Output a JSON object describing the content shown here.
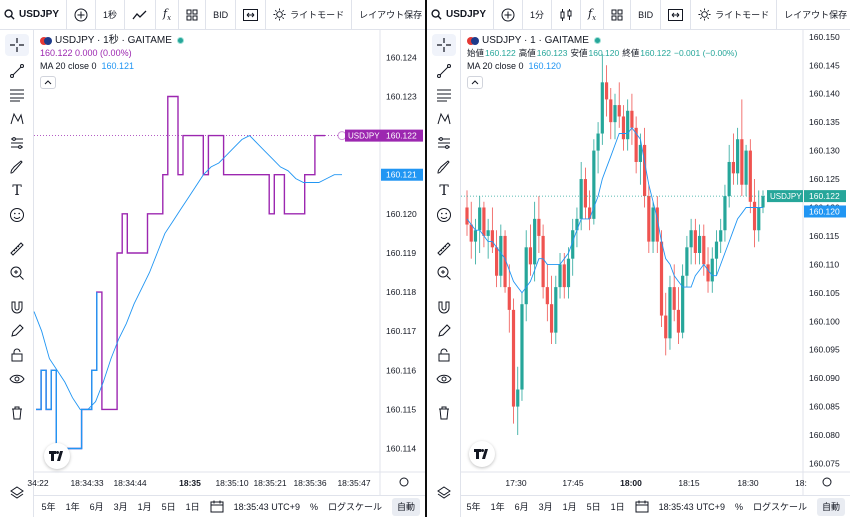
{
  "left": {
    "toolbar": {
      "symbol": "USDJPY",
      "interval": "1秒",
      "indicators_label": "BID",
      "theme_label": "ライトモード",
      "layout_label": "レイアウト保存"
    },
    "legend": {
      "title": "USDJPY · 1秒 · GAITAME",
      "values": "160.122  0.000 (0.00%)",
      "ma_label": "MA 20 close 0",
      "ma_value": "160.121"
    },
    "bottom": {
      "ranges": [
        "5年",
        "1年",
        "6月",
        "3月",
        "1月",
        "5日",
        "1日"
      ],
      "time": "18:35:43 UTC+9",
      "percent": "%",
      "log": "ログスケール",
      "auto": "自動"
    },
    "chart_data": {
      "type": "line",
      "title": "USDJPY · 1秒 · GAITAME",
      "y_ticks": [
        "160.124",
        "160.123",
        "160.122",
        "160.121",
        "160.120",
        "160.119",
        "160.118",
        "160.117",
        "160.116",
        "160.115",
        "160.114"
      ],
      "x_ticks": [
        "34:22",
        "18:34:33",
        "18:34:44",
        "18:35",
        "18:35:10",
        "18:35:21",
        "18:35:36",
        "18:35:47"
      ],
      "ylim": [
        160.1134,
        160.1247
      ],
      "series": [
        {
          "name": "USDJPY",
          "color": "#9c27b0",
          "values": [
            160.115,
            160.116,
            160.115,
            160.116,
            160.114,
            160.114,
            160.114,
            160.114,
            160.114,
            160.115,
            160.115,
            160.116,
            160.118,
            160.115,
            160.115,
            160.115,
            160.119,
            160.12,
            160.119,
            160.119,
            160.119,
            160.119,
            160.12,
            160.12,
            160.12,
            160.121,
            160.123,
            160.123,
            160.121,
            160.122,
            160.122,
            160.122,
            160.122,
            160.121,
            160.122,
            160.122,
            160.122,
            160.121,
            160.121,
            160.121,
            160.121,
            160.121,
            160.121,
            160.121,
            160.121,
            160.121,
            160.12,
            160.121,
            160.121,
            160.12,
            160.12,
            160.12,
            160.12,
            160.121,
            160.121,
            160.122,
            160.122,
            160.122
          ]
        },
        {
          "name": "MA 20",
          "color": "#2196f3",
          "values": [
            160.1175,
            160.117,
            160.1163,
            160.116,
            160.1157,
            160.1153,
            160.115,
            160.115,
            160.1152,
            160.1157,
            160.1163,
            160.1168,
            160.1172,
            160.1177,
            160.1181,
            160.1185,
            160.119,
            160.1195,
            160.1198,
            160.1201,
            160.1204,
            160.1207,
            160.121,
            160.1212,
            160.1213,
            160.1215,
            160.1217,
            160.1219,
            160.122,
            160.1218,
            160.1216,
            160.1214,
            160.1212,
            160.1211,
            160.1209,
            160.1208,
            160.1208,
            160.1208,
            160.1209,
            160.121,
            160.121
          ]
        }
      ],
      "last_label": "USDJPY",
      "last_value": "160.122",
      "ma_last_value": "160.121"
    }
  },
  "right": {
    "toolbar": {
      "symbol": "USDJPY",
      "interval": "1分",
      "indicators_label": "BID",
      "theme_label": "ライトモード",
      "layout_label": "レイアウト保存"
    },
    "legend": {
      "title": "USDJPY · 1 · GAITAME",
      "o_label": "始値",
      "o_val": "160.122",
      "h_label": "高値",
      "h_val": "160.123",
      "l_label": "安値",
      "l_val": "160.120",
      "c_label": "終値",
      "c_val": "160.122",
      "chg": "−0.001 (−0.00%)",
      "ma_label": "MA 20 close 0",
      "ma_value": "160.120"
    },
    "bottom": {
      "ranges": [
        "5年",
        "1年",
        "6月",
        "3月",
        "1月",
        "5日",
        "1日"
      ],
      "time": "18:35:43 UTC+9",
      "percent": "%",
      "log": "ログスケール",
      "auto": "自動"
    },
    "chart_data": {
      "type": "candlestick",
      "title": "USDJPY · 1 · GAITAME",
      "y_ticks": [
        "160.150",
        "160.145",
        "160.140",
        "160.135",
        "160.130",
        "160.125",
        "160.120",
        "160.115",
        "160.110",
        "160.105",
        "160.100",
        "160.095",
        "160.090",
        "160.085",
        "160.080",
        "160.075"
      ],
      "x_ticks": [
        "17:30",
        "17:45",
        "18:00",
        "18:15",
        "18:30",
        "18:"
      ],
      "ylim": [
        160.0735,
        160.1512
      ],
      "candles": [
        [
          160.12,
          160.123,
          160.115,
          160.117
        ],
        [
          160.117,
          160.121,
          160.111,
          160.114
        ],
        [
          160.114,
          160.118,
          160.11,
          160.116
        ],
        [
          160.116,
          160.122,
          160.112,
          160.12
        ],
        [
          160.12,
          160.121,
          160.113,
          160.115
        ],
        [
          160.115,
          160.118,
          160.111,
          160.116
        ],
        [
          160.116,
          160.12,
          160.112,
          160.113
        ],
        [
          160.113,
          160.116,
          160.106,
          160.108
        ],
        [
          160.108,
          160.117,
          160.106,
          160.115
        ],
        [
          160.115,
          160.116,
          160.105,
          160.106
        ],
        [
          160.106,
          160.11,
          160.098,
          160.102
        ],
        [
          160.102,
          160.104,
          160.082,
          160.085
        ],
        [
          160.085,
          160.092,
          160.08,
          160.088
        ],
        [
          160.088,
          160.105,
          160.086,
          160.103
        ],
        [
          160.103,
          160.116,
          160.1,
          160.113
        ],
        [
          160.113,
          160.117,
          160.108,
          160.11
        ],
        [
          160.11,
          160.121,
          160.107,
          160.118
        ],
        [
          160.118,
          160.122,
          160.112,
          160.115
        ],
        [
          160.115,
          160.117,
          160.104,
          160.106
        ],
        [
          160.106,
          160.11,
          160.1,
          160.103
        ],
        [
          160.103,
          160.108,
          160.096,
          160.098
        ],
        [
          160.098,
          160.108,
          160.096,
          160.106
        ],
        [
          160.106,
          160.112,
          160.104,
          160.11
        ],
        [
          160.11,
          160.112,
          160.104,
          160.106
        ],
        [
          160.106,
          160.113,
          160.104,
          160.111
        ],
        [
          160.111,
          160.118,
          160.108,
          160.116
        ],
        [
          160.116,
          160.12,
          160.113,
          160.118
        ],
        [
          160.118,
          160.128,
          160.116,
          160.125
        ],
        [
          160.125,
          160.127,
          160.118,
          160.12
        ],
        [
          160.12,
          160.123,
          160.116,
          160.118
        ],
        [
          160.118,
          160.132,
          160.117,
          160.13
        ],
        [
          160.13,
          160.135,
          160.126,
          160.133
        ],
        [
          160.133,
          160.147,
          160.131,
          160.142
        ],
        [
          160.142,
          160.145,
          160.136,
          160.139
        ],
        [
          160.139,
          160.141,
          160.132,
          160.135
        ],
        [
          160.135,
          160.14,
          160.132,
          160.138
        ],
        [
          160.138,
          160.142,
          160.134,
          160.136
        ],
        [
          160.136,
          160.138,
          160.13,
          160.132
        ],
        [
          160.132,
          160.139,
          160.13,
          160.137
        ],
        [
          160.137,
          160.14,
          160.131,
          160.134
        ],
        [
          160.134,
          160.136,
          160.126,
          160.128
        ],
        [
          160.128,
          160.133,
          160.124,
          160.131
        ],
        [
          160.131,
          160.134,
          160.12,
          160.122
        ],
        [
          160.122,
          160.124,
          160.112,
          160.114
        ],
        [
          160.114,
          160.121,
          160.112,
          160.12
        ],
        [
          160.12,
          160.122,
          160.112,
          160.114
        ],
        [
          160.114,
          160.116,
          160.099,
          160.101
        ],
        [
          160.101,
          160.105,
          160.094,
          160.097
        ],
        [
          160.097,
          160.108,
          160.095,
          160.106
        ],
        [
          160.106,
          160.11,
          160.1,
          160.102
        ],
        [
          160.102,
          160.106,
          160.096,
          160.098
        ],
        [
          160.098,
          160.11,
          160.097,
          160.108
        ],
        [
          160.108,
          160.115,
          160.106,
          160.113
        ],
        [
          160.113,
          160.118,
          160.11,
          160.116
        ],
        [
          160.116,
          160.118,
          160.11,
          160.112
        ],
        [
          160.112,
          160.117,
          160.11,
          160.115
        ],
        [
          160.115,
          160.117,
          160.108,
          160.11
        ],
        [
          160.11,
          160.113,
          160.105,
          160.107
        ],
        [
          160.107,
          160.113,
          160.105,
          160.111
        ],
        [
          160.111,
          160.116,
          160.108,
          160.114
        ],
        [
          160.114,
          160.118,
          160.112,
          160.116
        ],
        [
          160.116,
          160.124,
          160.114,
          160.122
        ],
        [
          160.122,
          160.131,
          160.12,
          160.128
        ],
        [
          160.128,
          160.133,
          160.124,
          160.126
        ],
        [
          160.126,
          160.134,
          160.124,
          160.132
        ],
        [
          160.132,
          160.139,
          160.122,
          160.124
        ],
        [
          160.124,
          160.131,
          160.122,
          160.13
        ],
        [
          160.13,
          160.132,
          160.119,
          160.121
        ],
        [
          160.121,
          160.125,
          160.113,
          160.116
        ],
        [
          160.116,
          160.123,
          160.114,
          160.12
        ],
        [
          160.12,
          160.123,
          160.119,
          160.122
        ]
      ],
      "ma": [
        160.118,
        160.117,
        160.116,
        160.116,
        160.115,
        160.114,
        160.114,
        160.113,
        160.112,
        160.111,
        160.109,
        160.107,
        160.106,
        160.105,
        160.106,
        160.107,
        160.109,
        160.111,
        160.111,
        160.11,
        160.11,
        160.11,
        160.11,
        160.111,
        160.112,
        160.114,
        160.116,
        160.118,
        160.118,
        160.118,
        160.12,
        160.122,
        160.125,
        160.127,
        160.129,
        160.131,
        160.133,
        160.133,
        160.133,
        160.134,
        160.133,
        160.132,
        160.128,
        160.124,
        160.121,
        160.118,
        160.114,
        160.111,
        160.11,
        160.108,
        160.107,
        160.106,
        160.106,
        160.106,
        160.108,
        160.109,
        160.11,
        160.109,
        160.108,
        160.108,
        160.11,
        160.112,
        160.114,
        160.116,
        160.118,
        160.119,
        160.12,
        160.12,
        160.12,
        160.12,
        160.12
      ],
      "last_label": "USDJPY",
      "last_value": "160.122",
      "ma_last_value": "160.120"
    }
  }
}
